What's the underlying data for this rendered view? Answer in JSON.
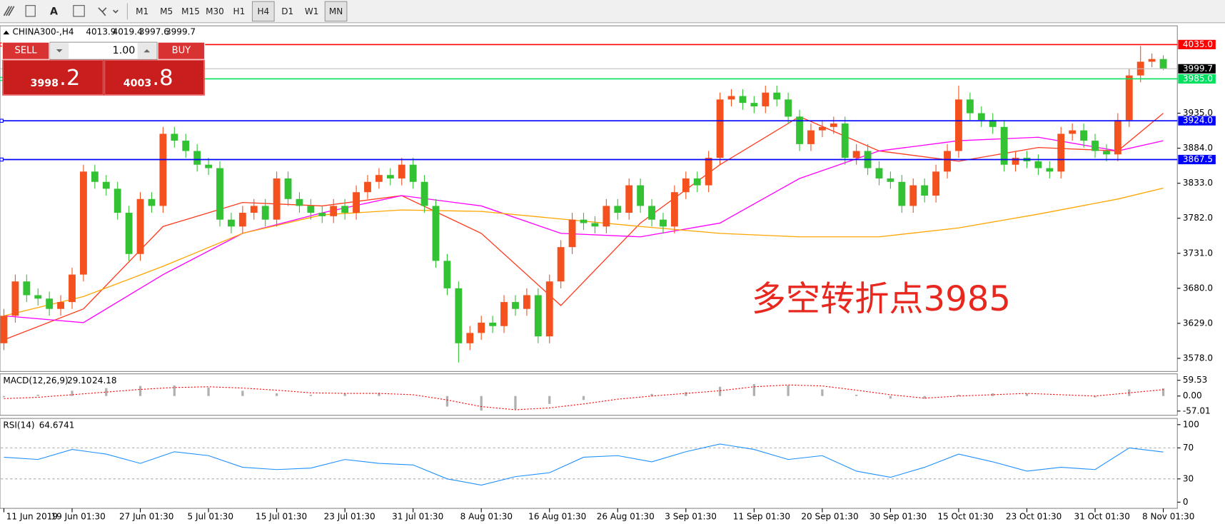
{
  "toolbar": {
    "tool_text": "A",
    "timeframes": [
      "M1",
      "M5",
      "M15",
      "M30",
      "H1",
      "H4",
      "D1",
      "W1",
      "MN"
    ],
    "active": [
      "H4",
      "MN"
    ]
  },
  "trade_panel": {
    "sell": "SELL",
    "buy": "BUY",
    "lot": "1.00",
    "sell_main": "3998",
    "sell_pips": ".2",
    "buy_main": "4003",
    "buy_pips": ".8"
  },
  "annotation": "多空转折点3985",
  "chart_data": {
    "type": "candlestick",
    "title": "CHINA300-,H4",
    "up_color": "#f4511e",
    "down_color": "#33c233",
    "categories": [
      "11 Jun 2019",
      null,
      null,
      null,
      null,
      null,
      "19 Jun 01:30",
      null,
      null,
      null,
      null,
      null,
      "27 Jun 01:30",
      null,
      null,
      null,
      null,
      null,
      "5 Jul 01:30",
      null,
      null,
      null,
      null,
      null,
      "15 Jul 01:30",
      null,
      null,
      null,
      null,
      null,
      "23 Jul 01:30",
      null,
      null,
      null,
      null,
      null,
      "31 Jul 01:30",
      null,
      null,
      null,
      null,
      null,
      "8 Aug 01:30",
      null,
      null,
      null,
      null,
      null,
      "16 Aug 01:30",
      null,
      null,
      null,
      null,
      null,
      "26 Aug 01:30",
      null,
      null,
      null,
      null,
      null,
      "3 Sep 01:30",
      null,
      null,
      null,
      null,
      null,
      "11 Sep 01:30",
      null,
      null,
      null,
      null,
      null,
      "20 Sep 01:30",
      null,
      null,
      null,
      null,
      null,
      "30 Sep 01:30",
      null,
      null,
      null,
      null,
      null,
      "15 Oct 01:30",
      null,
      null,
      null,
      null,
      null,
      "23 Oct 01:30",
      null,
      null,
      null,
      null,
      null,
      "31 Oct 01:30",
      null,
      null,
      null,
      null,
      null,
      "8 Nov 01:30"
    ],
    "open": [
      3600,
      3640,
      3690,
      3670,
      3665,
      3650,
      3660,
      3700,
      3850,
      3835,
      3825,
      3790,
      3730,
      3810,
      3800,
      3905,
      3895,
      3880,
      3860,
      3855,
      3780,
      3770,
      3790,
      3800,
      3780,
      3840,
      3810,
      3800,
      3790,
      3785,
      3800,
      3790,
      3820,
      3835,
      3845,
      3840,
      3860,
      3835,
      3800,
      3720,
      3680,
      3600,
      3615,
      3630,
      3625,
      3660,
      3650,
      3670,
      3610,
      3690,
      3740,
      3780,
      3775,
      3770,
      3800,
      3790,
      3830,
      3800,
      3780,
      3770,
      3820,
      3840,
      3830,
      3870,
      3955,
      3960,
      3950,
      3945,
      3965,
      3955,
      3930,
      3890,
      3910,
      3915,
      3920,
      3870,
      3880,
      3855,
      3840,
      3835,
      3800,
      3830,
      3815,
      3850,
      3880,
      3955,
      3935,
      3925,
      3915,
      3860,
      3870,
      3865,
      3855,
      3850,
      3905,
      3910,
      3895,
      3880,
      3875,
      3925,
      3990,
      4010,
      4013.9
    ],
    "high": [
      3650,
      3700,
      3700,
      3680,
      3675,
      3670,
      3710,
      3860,
      3860,
      3845,
      3835,
      3800,
      3820,
      3820,
      3915,
      3915,
      3905,
      3890,
      3870,
      3865,
      3790,
      3800,
      3810,
      3810,
      3850,
      3850,
      3820,
      3810,
      3800,
      3810,
      3810,
      3830,
      3845,
      3855,
      3855,
      3870,
      3870,
      3845,
      3810,
      3730,
      3690,
      3625,
      3640,
      3640,
      3670,
      3670,
      3680,
      3680,
      3700,
      3750,
      3790,
      3790,
      3785,
      3810,
      3810,
      3840,
      3840,
      3810,
      3790,
      3830,
      3850,
      3850,
      3880,
      3965,
      3970,
      3970,
      3960,
      3975,
      3975,
      3965,
      3940,
      3920,
      3925,
      3930,
      3930,
      3890,
      3890,
      3865,
      3850,
      3845,
      3840,
      3840,
      3860,
      3890,
      3975,
      3965,
      3945,
      3935,
      3925,
      3880,
      3880,
      3875,
      3865,
      3915,
      3920,
      3920,
      3905,
      3890,
      3935,
      4000,
      4033,
      4022,
      4019.4
    ],
    "low": [
      3590,
      3630,
      3660,
      3655,
      3640,
      3640,
      3650,
      3690,
      3825,
      3815,
      3780,
      3720,
      3720,
      3790,
      3790,
      3885,
      3870,
      3850,
      3845,
      3770,
      3760,
      3760,
      3780,
      3770,
      3770,
      3800,
      3790,
      3780,
      3775,
      3775,
      3780,
      3780,
      3810,
      3825,
      3830,
      3830,
      3825,
      3790,
      3710,
      3670,
      3572,
      3590,
      3605,
      3615,
      3615,
      3640,
      3640,
      3600,
      3600,
      3680,
      3730,
      3765,
      3760,
      3760,
      3780,
      3780,
      3790,
      3770,
      3760,
      3760,
      3810,
      3820,
      3820,
      3860,
      3945,
      3940,
      3935,
      3935,
      3945,
      3920,
      3880,
      3880,
      3900,
      3905,
      3860,
      3860,
      3845,
      3830,
      3825,
      3790,
      3790,
      3805,
      3805,
      3840,
      3870,
      3925,
      3915,
      3905,
      3850,
      3850,
      3855,
      3845,
      3840,
      3840,
      3895,
      3885,
      3870,
      3865,
      3865,
      3915,
      3980,
      4002,
      3997.6
    ],
    "close": [
      3640,
      3690,
      3670,
      3665,
      3650,
      3660,
      3700,
      3850,
      3835,
      3825,
      3790,
      3730,
      3810,
      3800,
      3905,
      3895,
      3880,
      3860,
      3855,
      3780,
      3770,
      3790,
      3800,
      3780,
      3840,
      3810,
      3800,
      3790,
      3785,
      3800,
      3790,
      3820,
      3835,
      3845,
      3840,
      3860,
      3835,
      3800,
      3720,
      3680,
      3600,
      3615,
      3630,
      3625,
      3660,
      3650,
      3670,
      3610,
      3690,
      3740,
      3780,
      3775,
      3770,
      3800,
      3790,
      3830,
      3800,
      3780,
      3770,
      3820,
      3840,
      3830,
      3870,
      3955,
      3960,
      3950,
      3945,
      3965,
      3955,
      3930,
      3890,
      3910,
      3915,
      3920,
      3870,
      3880,
      3855,
      3840,
      3835,
      3800,
      3830,
      3815,
      3850,
      3880,
      3955,
      3935,
      3925,
      3915,
      3860,
      3870,
      3865,
      3855,
      3850,
      3905,
      3910,
      3895,
      3880,
      3875,
      3925,
      3990,
      4010,
      4013.9,
      3999.7
    ],
    "ylim": [
      3560,
      4060
    ],
    "yticks": [
      {
        "value": 3935,
        "label": "3935.0"
      },
      {
        "value": 3884,
        "label": "3884.0"
      },
      {
        "value": 3833,
        "label": "3833.0"
      },
      {
        "value": 3782,
        "label": "3782.0"
      },
      {
        "value": 3731,
        "label": "3731.0"
      },
      {
        "value": 3680,
        "label": "3680.0"
      },
      {
        "value": 3629,
        "label": "3629.0"
      },
      {
        "value": 3578,
        "label": "3578.0"
      }
    ],
    "levels": [
      {
        "value": 4035,
        "label": "4035.0",
        "color": "#ff0000"
      },
      {
        "value": 3985,
        "label": "3985.0",
        "color": "#00e060"
      },
      {
        "value": 3924,
        "label": "3924.0",
        "color": "#0000ff"
      },
      {
        "value": 3867.5,
        "label": "3867.5",
        "color": "#0000ff"
      }
    ],
    "ma_x": [
      0,
      7,
      14,
      21,
      28,
      35,
      42,
      49,
      56,
      63,
      70,
      77,
      84,
      91,
      98,
      102
    ],
    "moving_averages": [
      {
        "color": "#ff3b1f",
        "values": [
          3605,
          3650,
          3770,
          3805,
          3800,
          3815,
          3760,
          3655,
          3775,
          3860,
          3930,
          3880,
          3865,
          3885,
          3880,
          3935
        ]
      },
      {
        "color": "#ff00ff",
        "values": [
          3640,
          3630,
          3700,
          3760,
          3790,
          3815,
          3800,
          3760,
          3755,
          3775,
          3840,
          3880,
          3895,
          3900,
          3880,
          3895
        ]
      },
      {
        "color": "#ffa500",
        "values": [
          3640,
          3668,
          3712,
          3760,
          3787,
          3794,
          3792,
          3781,
          3770,
          3760,
          3755,
          3755,
          3768,
          3788,
          3810,
          3826
        ]
      }
    ],
    "indicator_x": [
      0,
      3,
      6,
      9,
      12,
      15,
      18,
      21,
      24,
      27,
      30,
      33,
      36,
      39,
      42,
      45,
      48,
      51,
      54,
      57,
      60,
      63,
      66,
      69,
      72,
      75,
      78,
      81,
      84,
      87,
      90,
      93,
      96,
      99,
      102
    ],
    "macd": {
      "name": "MACD(12,26,9)",
      "legend_values": [
        {
          "value": 29.1,
          "label": "29.10"
        },
        {
          "value": 24.18,
          "label": "24.18"
        }
      ],
      "main": [
        -5,
        5,
        20,
        30,
        38,
        40,
        32,
        20,
        10,
        5,
        10,
        12,
        0,
        -40,
        -55,
        -50,
        -30,
        -15,
        0,
        8,
        15,
        35,
        45,
        40,
        25,
        5,
        -10,
        -10,
        5,
        10,
        10,
        0,
        -5,
        25,
        29.1
      ],
      "signal": [
        -10,
        -5,
        5,
        15,
        25,
        32,
        35,
        30,
        22,
        12,
        10,
        10,
        5,
        -15,
        -40,
        -52,
        -45,
        -30,
        -12,
        0,
        10,
        20,
        35,
        42,
        38,
        22,
        5,
        -8,
        0,
        5,
        10,
        5,
        0,
        12,
        24.18
      ],
      "ylim": [
        -70,
        81
      ],
      "yticks": [
        59.53,
        {
          "value": 0,
          "label": "0.00"
        },
        -57.01
      ],
      "bar_color": "#b0b0b0",
      "signal_color": "#ff0000"
    },
    "rsi": {
      "name": "RSI(14)",
      "values": [
        58,
        55,
        68,
        62,
        50,
        65,
        60,
        45,
        42,
        44,
        55,
        50,
        48,
        30,
        22,
        33,
        38,
        58,
        60,
        52,
        65,
        75,
        68,
        55,
        60,
        40,
        32,
        45,
        62,
        52,
        40,
        45,
        42,
        70,
        64.6741
      ],
      "ylim": [
        -8,
        107
      ],
      "yticks": [
        100,
        70,
        30,
        0
      ],
      "levels": [
        70,
        30
      ],
      "color": "#1e90ff"
    }
  }
}
